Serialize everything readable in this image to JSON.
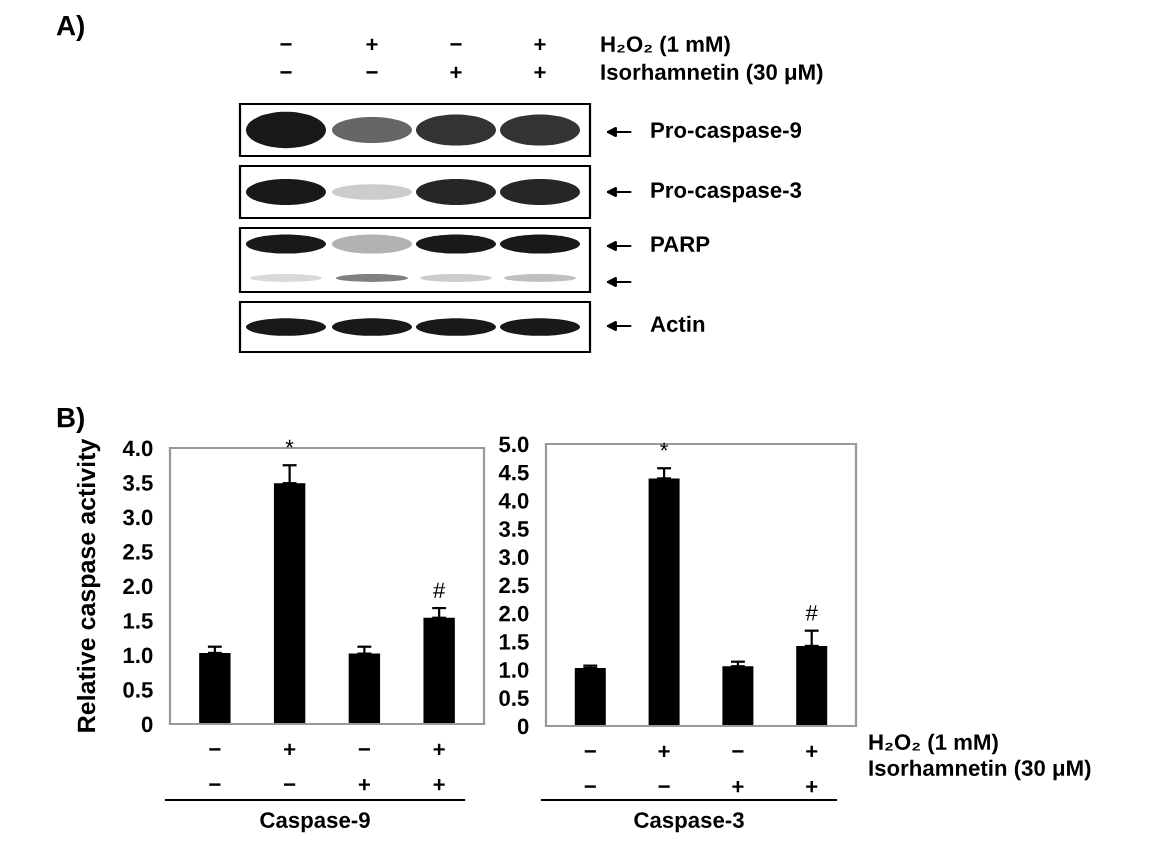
{
  "chart_data": [
    {
      "type": "other",
      "annotations": [
        "A)",
        "−",
        "+",
        "−",
        "+",
        "−",
        "−",
        "+",
        "+",
        "H₂O₂ (1 mM)",
        "Isorhamnetin (30 μM)",
        "Pro-caspase-9",
        "Pro-caspase-3",
        "PARP",
        "Actin"
      ]
    },
    {
      "type": "bar",
      "categories": [
        "−\n−",
        "+\n−",
        "−\n+",
        "+\n+"
      ],
      "values": [
        1.03,
        3.49,
        1.02,
        1.54
      ],
      "errors": [
        [
          1.03,
          1.12
        ],
        [
          3.49,
          3.75
        ],
        [
          1.02,
          1.12
        ],
        [
          1.54,
          1.68
        ]
      ],
      "color": "#000000",
      "ylabel": "Relative caspase activity",
      "xlabel": "Caspase-9",
      "ylim": [
        0,
        4
      ],
      "yticks": [
        0,
        0.5,
        {
          "value": 1,
          "label": "1.0"
        },
        1.5,
        {
          "value": 2,
          "label": "2.0"
        },
        2.5,
        {
          "value": 3,
          "label": "3.0"
        },
        3.5,
        {
          "value": 4,
          "label": "4.0"
        }
      ],
      "grid": false,
      "legend": false,
      "annotations": [
        "B)",
        {
          "text": "*",
          "x": "+\n−",
          "y": 3.75
        },
        {
          "text": "#",
          "x": "+\n+",
          "y": 1.68
        }
      ]
    },
    {
      "type": "bar",
      "categories": [
        "−\n−",
        "+\n−",
        "−\n+",
        "+\n+"
      ],
      "values": [
        1.03,
        4.39,
        1.06,
        1.42
      ],
      "errors": [
        [
          1.03,
          1.07
        ],
        [
          4.39,
          4.57
        ],
        [
          1.06,
          1.14
        ],
        [
          1.42,
          1.69
        ]
      ],
      "color": "#000000",
      "xlabel": "Caspase-3",
      "ylim": [
        0,
        5
      ],
      "yticks": [
        0,
        0.5,
        {
          "value": 1,
          "label": "1.0"
        },
        1.5,
        {
          "value": 2,
          "label": "2.0"
        },
        2.5,
        {
          "value": 3,
          "label": "3.0"
        },
        3.5,
        {
          "value": 4,
          "label": "4.0"
        },
        4.5,
        {
          "value": 5,
          "label": "5.0"
        }
      ],
      "grid": false,
      "legend": false,
      "annotations": [
        {
          "text": "*",
          "x": "+\n−",
          "y": 4.57
        },
        {
          "text": "#",
          "x": "+\n+",
          "y": 1.69
        },
        "H₂O₂ (1 mM)",
        "Isorhamnetin (30 μM)"
      ]
    }
  ]
}
